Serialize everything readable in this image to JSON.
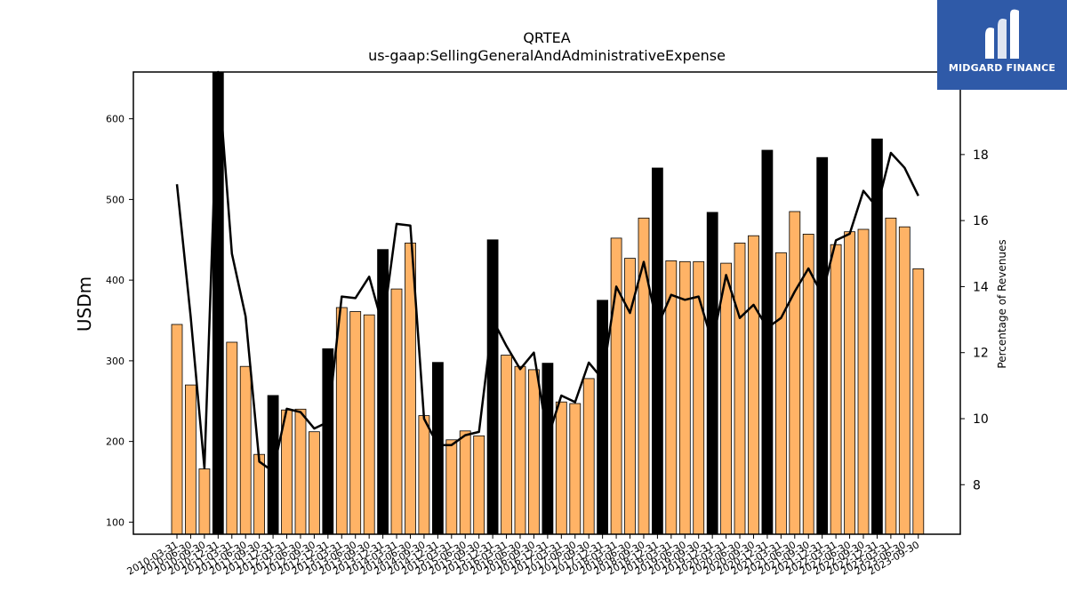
{
  "chart_data": {
    "type": "bar",
    "title": "QRTEA",
    "subtitle": "us-gaap:SellingGeneralAndAdministrativeExpense",
    "ylabel": "USDm",
    "y2label": "Percentage of Revenues",
    "ylim": [
      85,
      658
    ],
    "y2lim": [
      6.5,
      20.5
    ],
    "yticks": [
      100,
      200,
      300,
      400,
      500,
      600
    ],
    "y2ticks": [
      8,
      10,
      12,
      14,
      16,
      18
    ],
    "categories": [
      "2010-03-31",
      "2010-06-30",
      "2010-09-30",
      "2010-12-31",
      "2011-03-31",
      "2011-06-30",
      "2011-09-30",
      "2011-12-31",
      "2012-03-31",
      "2012-06-30",
      "2012-09-30",
      "2012-12-31",
      "2013-03-31",
      "2013-06-30",
      "2013-09-30",
      "2013-12-31",
      "2014-03-31",
      "2014-06-30",
      "2014-09-30",
      "2014-12-31",
      "2015-03-31",
      "2015-06-30",
      "2015-09-30",
      "2015-12-31",
      "2016-03-31",
      "2016-06-30",
      "2016-09-30",
      "2016-12-31",
      "2017-03-31",
      "2017-06-30",
      "2017-09-30",
      "2017-12-31",
      "2018-03-31",
      "2018-06-30",
      "2018-09-30",
      "2018-12-31",
      "2019-03-31",
      "2019-06-30",
      "2019-09-30",
      "2019-12-31",
      "2020-03-31",
      "2020-06-30",
      "2020-09-30",
      "2020-12-31",
      "2021-03-31",
      "2021-06-30",
      "2021-09-30",
      "2021-12-31",
      "2022-03-31",
      "2022-06-30",
      "2022-09-30",
      "2022-12-31",
      "2023-03-31",
      "2023-06-30",
      "2023-09-30"
    ],
    "series": [
      {
        "values": [
          345,
          270,
          166,
          658,
          323,
          293,
          184,
          257,
          239,
          240,
          212,
          315,
          366,
          361,
          357,
          438,
          389,
          446,
          232,
          298,
          202,
          213,
          207,
          450,
          307,
          293,
          289,
          297,
          249,
          247,
          278,
          375,
          452,
          427,
          477,
          539,
          424,
          423,
          423,
          484,
          421,
          446,
          455,
          561,
          434,
          485,
          457,
          552,
          444,
          460,
          463,
          575,
          477,
          466,
          414
        ]
      },
      {
        "type": "line",
        "axis": "right",
        "values": [
          17.1,
          13.1,
          8.5,
          20.5,
          15.0,
          13.1,
          8.7,
          8.4,
          10.3,
          10.2,
          9.7,
          9.9,
          13.7,
          13.65,
          14.3,
          12.8,
          15.9,
          15.85,
          10.0,
          9.2,
          9.2,
          9.5,
          9.6,
          13.0,
          12.2,
          11.5,
          12.0,
          9.4,
          10.7,
          10.5,
          11.7,
          11.2,
          14.0,
          13.2,
          14.75,
          12.8,
          13.75,
          13.6,
          13.7,
          12.3,
          14.35,
          13.05,
          13.45,
          12.75,
          13.05,
          13.85,
          14.55,
          13.75,
          15.4,
          15.6,
          16.9,
          16.4,
          18.05,
          17.6,
          16.75
        ]
      }
    ],
    "year_end_highlight_color": "#000000",
    "bar_color": "#ffb366",
    "line_color": "#000000"
  },
  "logo": {
    "text": "MIDGARD FINANCE",
    "background": "#2f5aa8"
  }
}
